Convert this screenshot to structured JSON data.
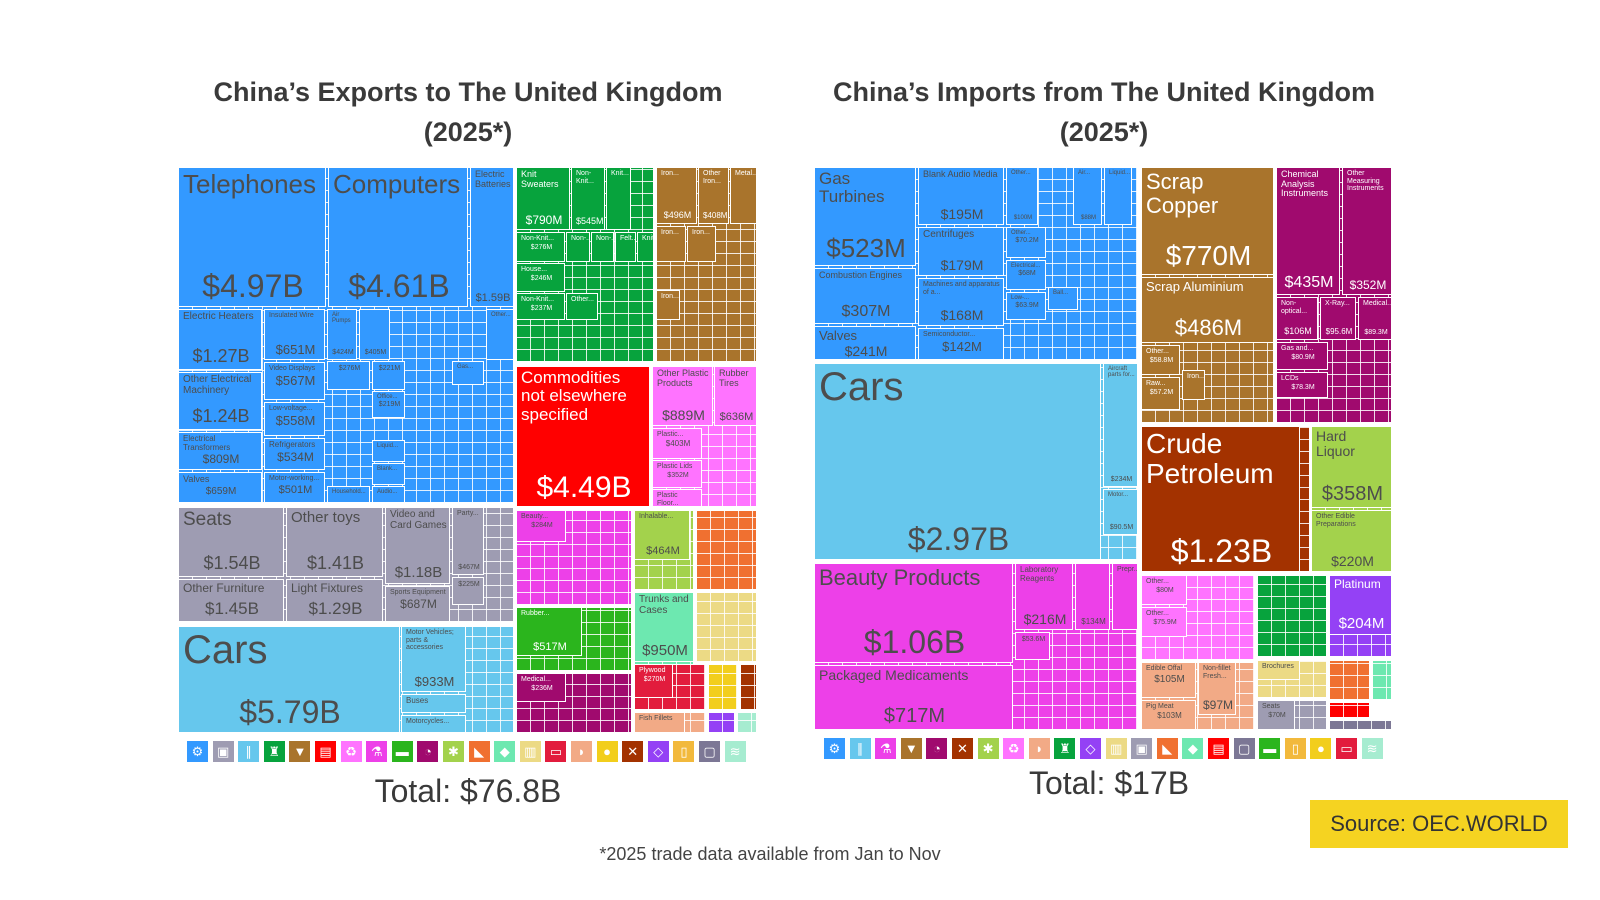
{
  "exports": {
    "title": "China’s Exports to The United Kingdom (2025*)",
    "total": "Total: $76.8B"
  },
  "imports": {
    "title": "China’s Imports from The United Kingdom (2025*)",
    "total": "Total: $17B"
  },
  "footnote": "*2025 trade data available from Jan to Nov",
  "source": "Source: OEC.WORLD",
  "colors": {
    "machinery": "#3399ff",
    "textiles": "#07a33d",
    "metals": "#a9742c",
    "unspecified": "#ff0000",
    "plastics": "#ff73ff",
    "misc": "#9e9cb2",
    "transport": "#66c7ed",
    "chemicals": "#ed40e8",
    "vegetable": "#a3d24c",
    "footwear": "#f07030",
    "stone": "#6de8b0",
    "paper": "#ecda85",
    "instruments": "#a00a6e",
    "wood": "#e21c3d",
    "foodstuffs": "#f2ce1c",
    "mineral": "#a33200",
    "precious": "#9441f5",
    "animal": "#f2aa86",
    "rubber": "#2bb51d",
    "weapons": "#7c7795",
    "hides": "#f2b93c",
    "animal_hair": "#a6ecd0"
  },
  "chart_data": [
    {
      "type": "treemap",
      "title": "China’s Exports to The United Kingdom (2025*)",
      "total": "Total: $76.8B",
      "tiles": [
        {
          "label": "Telephones",
          "value": "$4.97B",
          "sector": "machinery"
        },
        {
          "label": "Computers",
          "value": "$4.61B",
          "sector": "machinery"
        },
        {
          "label": "Electric Batteries",
          "value": "$1.59B",
          "sector": "machinery"
        },
        {
          "label": "Electric Heaters",
          "value": "$1.27B",
          "sector": "machinery"
        },
        {
          "label": "Other Electrical Machinery",
          "value": "$1.24B",
          "sector": "machinery"
        },
        {
          "label": "Electrical Transformers",
          "value": "$809M",
          "sector": "machinery"
        },
        {
          "label": "Valves",
          "value": "$659M",
          "sector": "machinery"
        },
        {
          "label": "Insulated Wire",
          "value": "$651M",
          "sector": "machinery"
        },
        {
          "label": "Video Displays",
          "value": "$567M",
          "sector": "machinery"
        },
        {
          "label": "Low-voltage...",
          "value": "$558M",
          "sector": "machinery"
        },
        {
          "label": "Refrigerators",
          "value": "$534M",
          "sector": "machinery"
        },
        {
          "label": "Motor-working...",
          "value": "$501M",
          "sector": "machinery"
        },
        {
          "label": "Air Pumps",
          "value": "$424M",
          "sector": "machinery"
        },
        {
          "label": "",
          "value": "$405M",
          "sector": "machinery"
        },
        {
          "label": "",
          "value": "$276M",
          "sector": "machinery"
        },
        {
          "label": "",
          "value": "$221M",
          "sector": "machinery"
        },
        {
          "label": "Office...",
          "value": "$219M",
          "sector": "machinery"
        },
        {
          "label": "Gas...",
          "value": "",
          "sector": "machinery"
        },
        {
          "label": "Liquid...",
          "value": "",
          "sector": "machinery"
        },
        {
          "label": "Blank...",
          "value": "",
          "sector": "machinery"
        },
        {
          "label": "Household...",
          "value": "",
          "sector": "machinery"
        },
        {
          "label": "Audio...",
          "value": "",
          "sector": "machinery"
        },
        {
          "label": "Other...",
          "value": "",
          "sector": "machinery"
        },
        {
          "label": "Knit Sweaters",
          "value": "$790M",
          "sector": "textiles"
        },
        {
          "label": "Non-Knit...",
          "value": "$545M",
          "sector": "textiles"
        },
        {
          "label": "Knit...",
          "value": "",
          "sector": "textiles"
        },
        {
          "label": "Non-Knit...",
          "value": "$276M",
          "sector": "textiles"
        },
        {
          "label": "House...",
          "value": "$246M",
          "sector": "textiles"
        },
        {
          "label": "Non-Knit...",
          "value": "$237M",
          "sector": "textiles"
        },
        {
          "label": "Non-...",
          "value": "",
          "sector": "textiles"
        },
        {
          "label": "Non-...",
          "value": "",
          "sector": "textiles"
        },
        {
          "label": "Felt...",
          "value": "",
          "sector": "textiles"
        },
        {
          "label": "Knit...",
          "value": "",
          "sector": "textiles"
        },
        {
          "label": "Other...",
          "value": "",
          "sector": "textiles"
        },
        {
          "label": "Iron...",
          "value": "$496M",
          "sector": "metals"
        },
        {
          "label": "Other Iron...",
          "value": "$408M",
          "sector": "metals"
        },
        {
          "label": "Metal...",
          "value": "",
          "sector": "metals"
        },
        {
          "label": "Iron...",
          "value": "",
          "sector": "metals"
        },
        {
          "label": "Iron...",
          "value": "",
          "sector": "metals"
        },
        {
          "label": "Iron...",
          "value": "",
          "sector": "metals"
        },
        {
          "label": "Commodities not elsewhere specified",
          "value": "$4.49B",
          "sector": "unspecified"
        },
        {
          "label": "Other Plastic Products",
          "value": "$889M",
          "sector": "plastics"
        },
        {
          "label": "Rubber Tires",
          "value": "$636M",
          "sector": "plastics"
        },
        {
          "label": "Plastic...",
          "value": "$403M",
          "sector": "plastics"
        },
        {
          "label": "Plastic Lids",
          "value": "$352M",
          "sector": "plastics"
        },
        {
          "label": "Plastic Floor...",
          "value": "",
          "sector": "plastics"
        },
        {
          "label": "Seats",
          "value": "$1.54B",
          "sector": "misc"
        },
        {
          "label": "Other toys",
          "value": "$1.41B",
          "sector": "misc"
        },
        {
          "label": "Other Furniture",
          "value": "$1.45B",
          "sector": "misc"
        },
        {
          "label": "Light Fixtures",
          "value": "$1.29B",
          "sector": "misc"
        },
        {
          "label": "Video and Card Games",
          "value": "$1.18B",
          "sector": "misc"
        },
        {
          "label": "Sports Equipment",
          "value": "$687M",
          "sector": "misc"
        },
        {
          "label": "Party...",
          "value": "$467M",
          "sector": "misc"
        },
        {
          "label": "",
          "value": "$225M",
          "sector": "misc"
        },
        {
          "label": "Cars",
          "value": "$5.79B",
          "sector": "transport"
        },
        {
          "label": "Motor Vehicles; parts & accessories",
          "value": "$933M",
          "sector": "transport"
        },
        {
          "label": "Buses",
          "value": "",
          "sector": "transport"
        },
        {
          "label": "Motorcycles...",
          "value": "",
          "sector": "transport"
        },
        {
          "label": "Beauty...",
          "value": "$284M",
          "sector": "chemicals"
        },
        {
          "label": "Inhalable...",
          "value": "$464M",
          "sector": "vegetable"
        },
        {
          "label": "Rubber...",
          "value": "$517M",
          "sector": "rubber"
        },
        {
          "label": "Trunks and Cases",
          "value": "$950M",
          "sector": "stone"
        },
        {
          "label": "Medical...",
          "value": "$236M",
          "sector": "instruments"
        },
        {
          "label": "Plywood",
          "value": "$270M",
          "sector": "wood"
        },
        {
          "label": "Fish Fillets",
          "value": "",
          "sector": "animal"
        }
      ],
      "legend_icons": [
        {
          "sector": "machinery",
          "icon": "gear-icon"
        },
        {
          "sector": "misc",
          "icon": "box-icon"
        },
        {
          "sector": "transport",
          "icon": "road-icon"
        },
        {
          "sector": "textiles",
          "icon": "shirt-icon"
        },
        {
          "sector": "metals",
          "icon": "anvil-icon"
        },
        {
          "sector": "unspecified",
          "icon": "package-icon"
        },
        {
          "sector": "plastics",
          "icon": "recycle-icon"
        },
        {
          "sector": "chemicals",
          "icon": "flask-icon"
        },
        {
          "sector": "rubber",
          "icon": "hide-icon"
        },
        {
          "sector": "instruments",
          "icon": "gauge-icon"
        },
        {
          "sector": "vegetable",
          "icon": "wheat-icon"
        },
        {
          "sector": "footwear",
          "icon": "shoe-icon"
        },
        {
          "sector": "stone",
          "icon": "stone-icon"
        },
        {
          "sector": "paper",
          "icon": "paper-icon"
        },
        {
          "sector": "wood",
          "icon": "wood-icon"
        },
        {
          "sector": "animal",
          "icon": "animal-icon"
        },
        {
          "sector": "foodstuffs",
          "icon": "apple-icon"
        },
        {
          "sector": "mineral",
          "icon": "pickaxe-icon"
        },
        {
          "sector": "precious",
          "icon": "diamond-icon"
        },
        {
          "sector": "hides",
          "icon": "bottle-icon"
        },
        {
          "sector": "weapons",
          "icon": "frame-icon"
        },
        {
          "sector": "animal_hair",
          "icon": "yarn-icon"
        }
      ]
    },
    {
      "type": "treemap",
      "title": "China’s Imports from The United Kingdom (2025*)",
      "total": "Total: $17B",
      "tiles": [
        {
          "label": "Gas Turbines",
          "value": "$523M",
          "sector": "machinery"
        },
        {
          "label": "Combustion Engines",
          "value": "$307M",
          "sector": "machinery"
        },
        {
          "label": "Valves",
          "value": "$241M",
          "sector": "machinery"
        },
        {
          "label": "Blank Audio Media",
          "value": "$195M",
          "sector": "machinery"
        },
        {
          "label": "Centrifuges",
          "value": "$179M",
          "sector": "machinery"
        },
        {
          "label": "Machines and apparatus of a...",
          "value": "$168M",
          "sector": "machinery"
        },
        {
          "label": "Semiconductor...",
          "value": "$142M",
          "sector": "machinery"
        },
        {
          "label": "Other...",
          "value": "$100M",
          "sector": "machinery"
        },
        {
          "label": "Air...",
          "value": "$88M",
          "sector": "machinery"
        },
        {
          "label": "Liquid...",
          "value": "",
          "sector": "machinery"
        },
        {
          "label": "Other...",
          "value": "$70.2M",
          "sector": "machinery"
        },
        {
          "label": "Electrical...",
          "value": "$68M",
          "sector": "machinery"
        },
        {
          "label": "Low-...",
          "value": "$63.9M",
          "sector": "machinery"
        },
        {
          "label": "Ball...",
          "value": "",
          "sector": "machinery"
        },
        {
          "label": "Cars",
          "value": "$2.97B",
          "sector": "transport"
        },
        {
          "label": "Aircraft parts for...",
          "value": "$234M",
          "sector": "transport"
        },
        {
          "label": "Motor...",
          "value": "$90.5M",
          "sector": "transport"
        },
        {
          "label": "Beauty Products",
          "value": "$1.06B",
          "sector": "chemicals"
        },
        {
          "label": "Packaged Medicaments",
          "value": "$717M",
          "sector": "chemicals"
        },
        {
          "label": "Laboratory Reagents",
          "value": "$216M",
          "sector": "chemicals"
        },
        {
          "label": "",
          "value": "$134M",
          "sector": "chemicals"
        },
        {
          "label": "Prepr...",
          "value": "",
          "sector": "chemicals"
        },
        {
          "label": "",
          "value": "$53.6M",
          "sector": "chemicals"
        },
        {
          "label": "Scrap Copper",
          "value": "$770M",
          "sector": "metals"
        },
        {
          "label": "Scrap Aluminium",
          "value": "$486M",
          "sector": "metals"
        },
        {
          "label": "Other...",
          "value": "$58.8M",
          "sector": "metals"
        },
        {
          "label": "Raw...",
          "value": "$57.2M",
          "sector": "metals"
        },
        {
          "label": "Iron...",
          "value": "",
          "sector": "metals"
        },
        {
          "label": "Chemical Analysis Instruments",
          "value": "$435M",
          "sector": "instruments"
        },
        {
          "label": "Other Measuring Instruments",
          "value": "$352M",
          "sector": "instruments"
        },
        {
          "label": "Non-optical...",
          "value": "$106M",
          "sector": "instruments"
        },
        {
          "label": "X-Ray...",
          "value": "$95.6M",
          "sector": "instruments"
        },
        {
          "label": "Medical...",
          "value": "$89.3M",
          "sector": "instruments"
        },
        {
          "label": "Gas and...",
          "value": "$80.9M",
          "sector": "instruments"
        },
        {
          "label": "LCDs",
          "value": "$78.3M",
          "sector": "instruments"
        },
        {
          "label": "Crude Petroleum",
          "value": "$1.23B",
          "sector": "mineral"
        },
        {
          "label": "Hard Liquor",
          "value": "$358M",
          "sector": "vegetable"
        },
        {
          "label": "Other Edible Preparations",
          "value": "$220M",
          "sector": "vegetable"
        },
        {
          "label": "Other...",
          "value": "$80M",
          "sector": "plastics"
        },
        {
          "label": "Other...",
          "value": "$75.9M",
          "sector": "plastics"
        },
        {
          "label": "Platinum",
          "value": "$204M",
          "sector": "precious"
        },
        {
          "label": "Edible Offal",
          "value": "$105M",
          "sector": "animal"
        },
        {
          "label": "Non-fillet Fresh...",
          "value": "$97M",
          "sector": "animal"
        },
        {
          "label": "Pig Meat",
          "value": "$103M",
          "sector": "animal"
        },
        {
          "label": "Brochures",
          "value": "",
          "sector": "paper"
        },
        {
          "label": "Seats",
          "value": "$70M",
          "sector": "misc"
        }
      ],
      "legend_icons": [
        {
          "sector": "machinery",
          "icon": "gear-icon"
        },
        {
          "sector": "transport",
          "icon": "road-icon"
        },
        {
          "sector": "chemicals",
          "icon": "flask-icon"
        },
        {
          "sector": "metals",
          "icon": "anvil-icon"
        },
        {
          "sector": "instruments",
          "icon": "gauge-icon"
        },
        {
          "sector": "mineral",
          "icon": "pickaxe-icon"
        },
        {
          "sector": "vegetable",
          "icon": "wheat-icon"
        },
        {
          "sector": "plastics",
          "icon": "recycle-icon"
        },
        {
          "sector": "animal",
          "icon": "animal-icon"
        },
        {
          "sector": "textiles",
          "icon": "shirt-icon"
        },
        {
          "sector": "precious",
          "icon": "diamond-icon"
        },
        {
          "sector": "paper",
          "icon": "paper-icon"
        },
        {
          "sector": "misc",
          "icon": "box-icon"
        },
        {
          "sector": "footwear",
          "icon": "shoe-icon"
        },
        {
          "sector": "stone",
          "icon": "stone-icon"
        },
        {
          "sector": "unspecified",
          "icon": "package-icon"
        },
        {
          "sector": "weapons",
          "icon": "frame-icon"
        },
        {
          "sector": "rubber",
          "icon": "hide-icon"
        },
        {
          "sector": "hides",
          "icon": "bottle-icon"
        },
        {
          "sector": "foodstuffs",
          "icon": "apple-icon"
        },
        {
          "sector": "wood",
          "icon": "wood-icon"
        },
        {
          "sector": "animal_hair",
          "icon": "yarn-icon"
        }
      ]
    }
  ]
}
